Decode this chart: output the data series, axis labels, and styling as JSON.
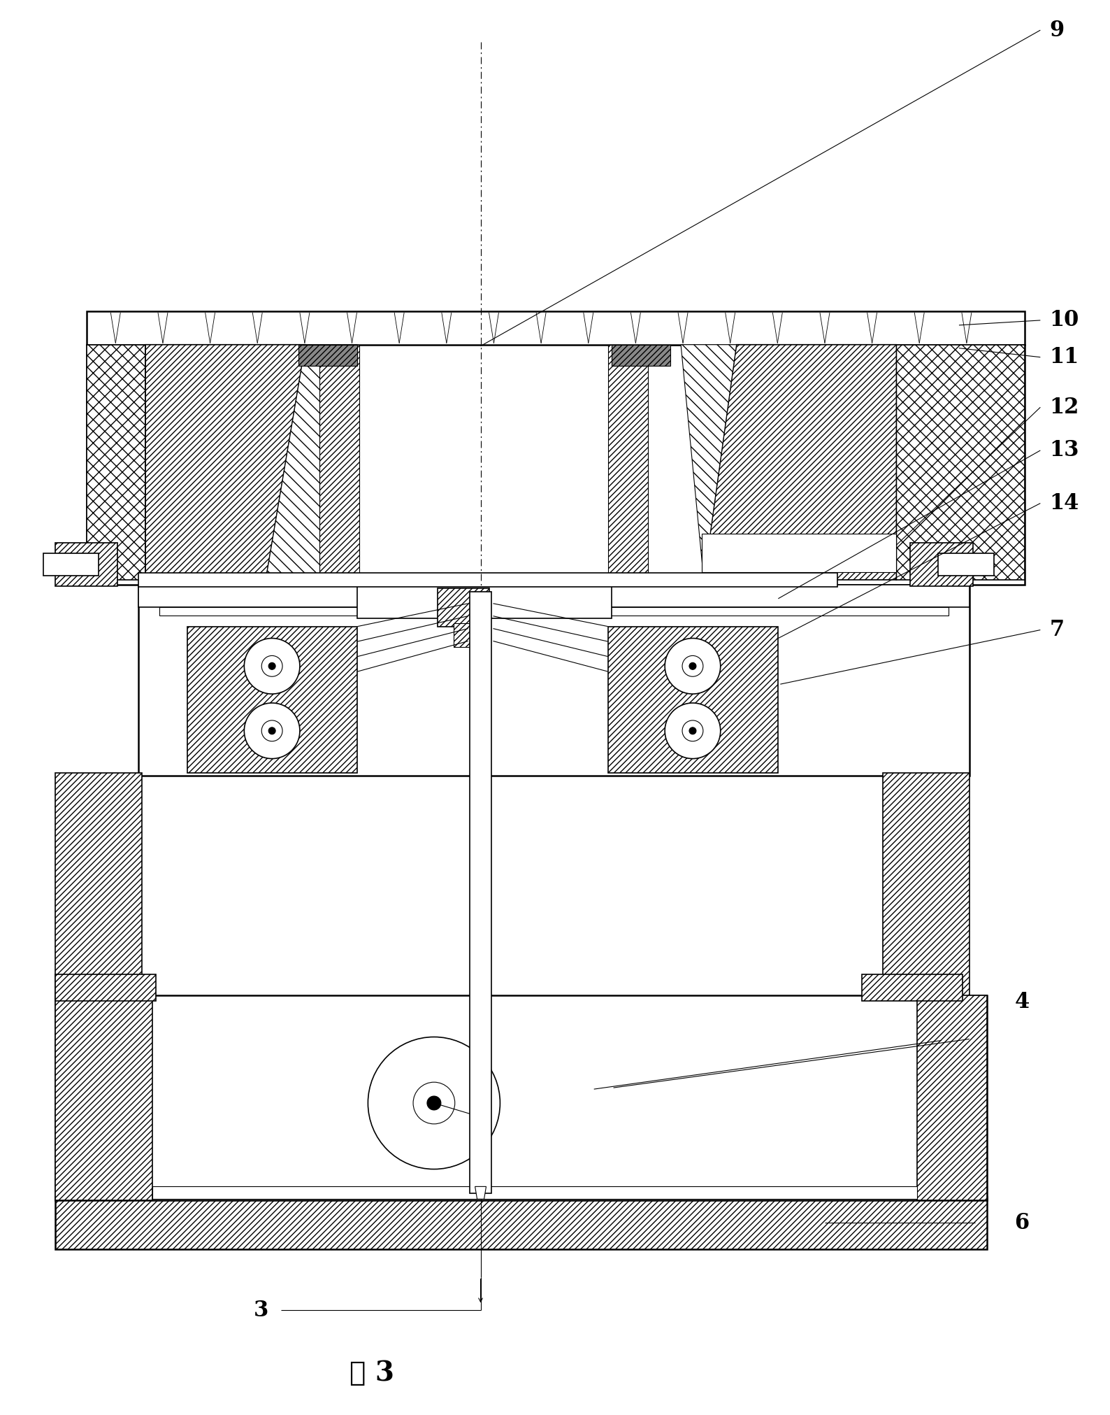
{
  "figsize": [
    15.88,
    20.23
  ],
  "dpi": 100,
  "bg_color": "#ffffff",
  "lc": "#000000",
  "caption": "图 3",
  "label_fontsize": 22
}
